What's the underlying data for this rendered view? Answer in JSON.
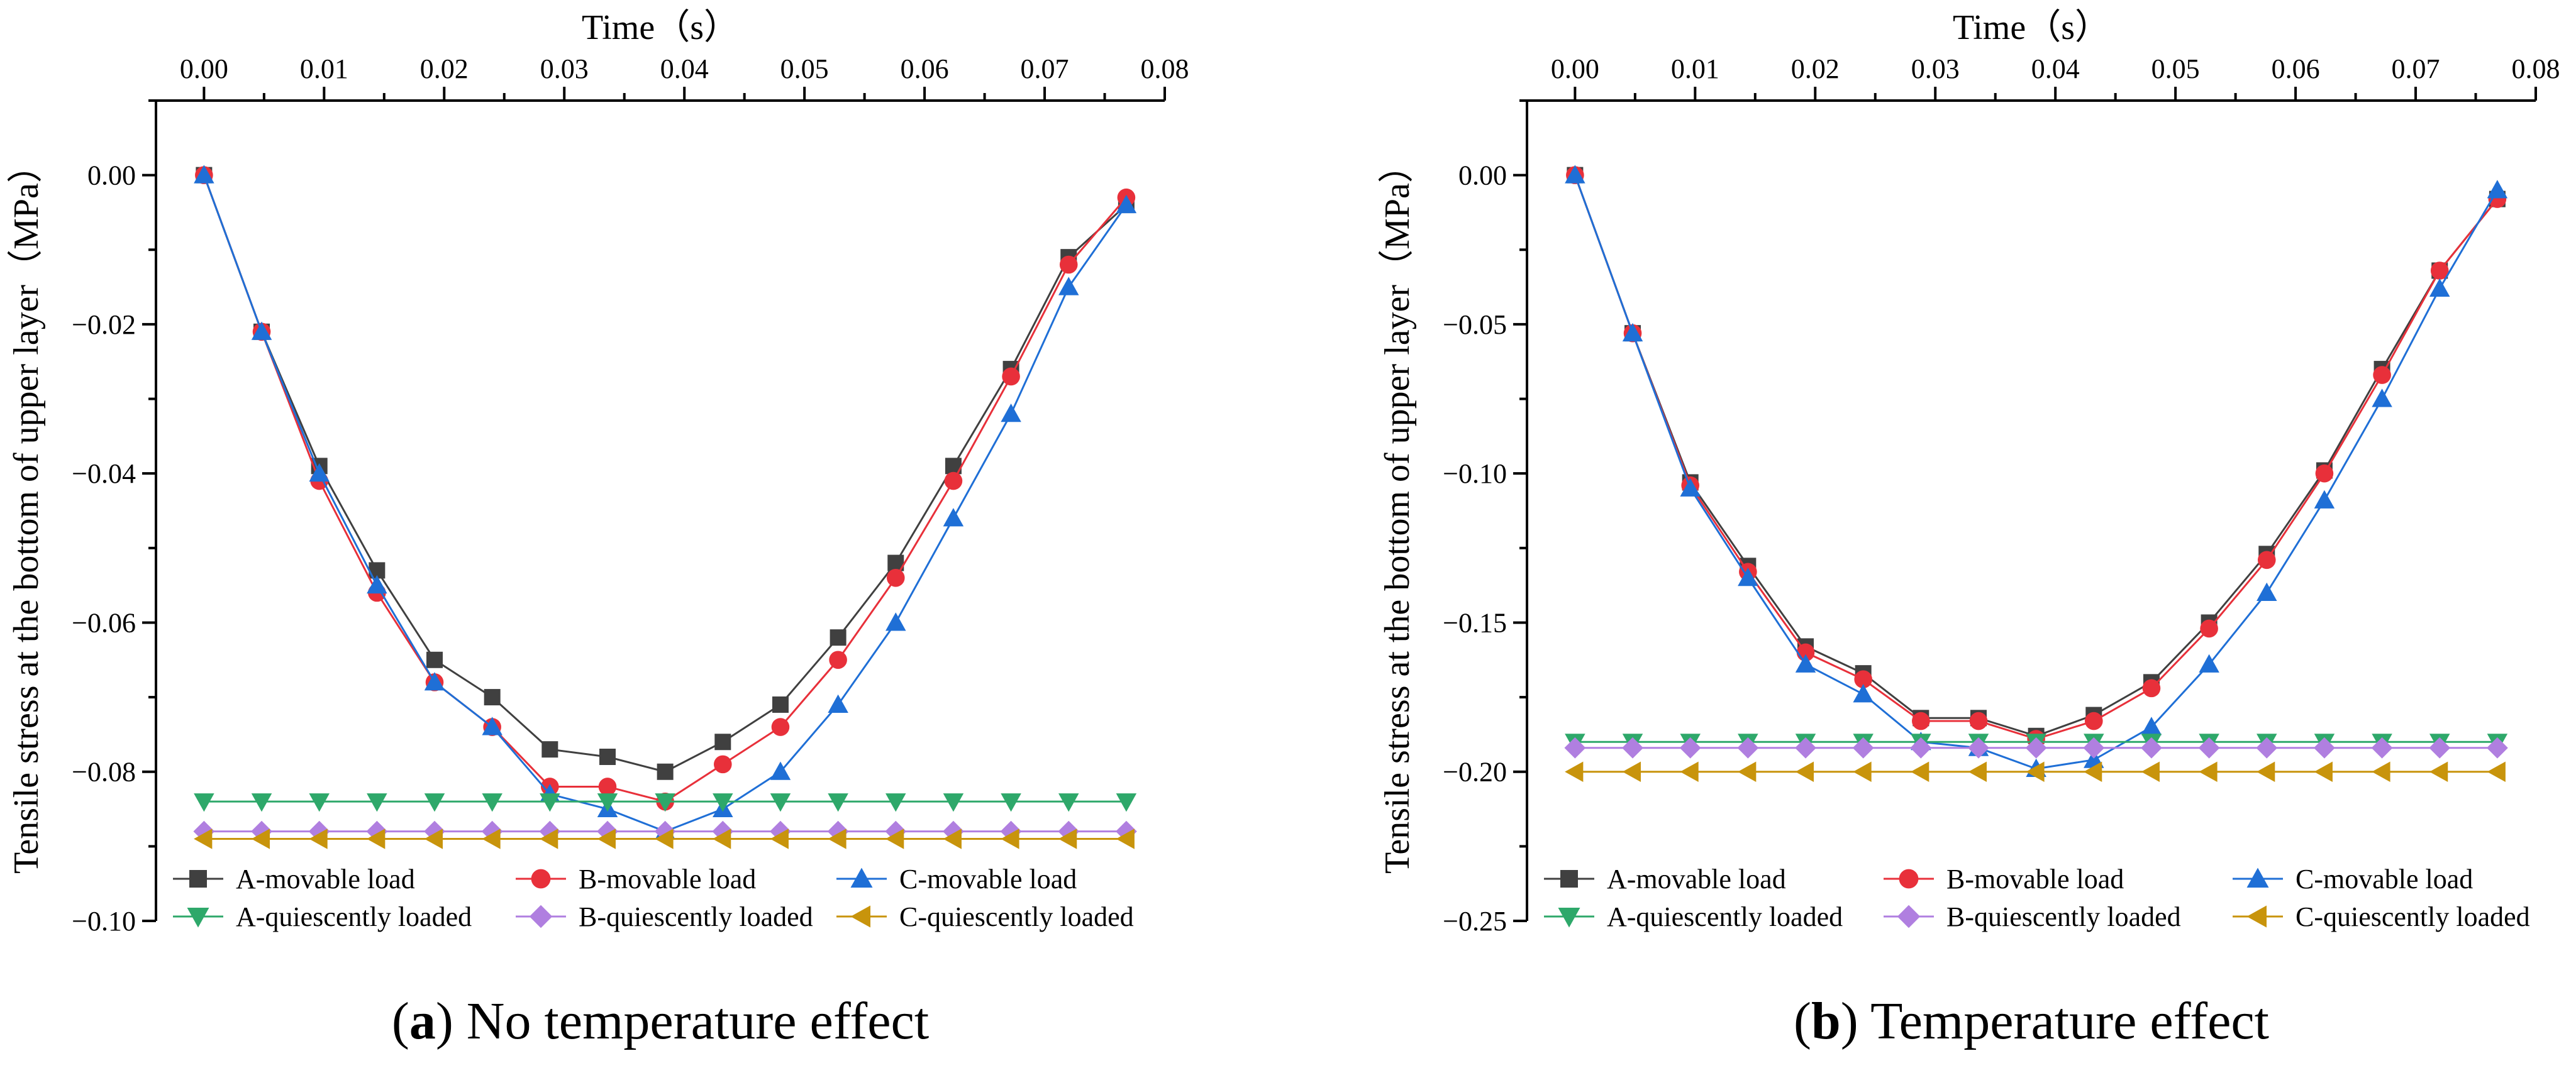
{
  "chart_data": [
    {
      "type": "line",
      "caption": {
        "letter": "a",
        "text": "No temperature effect"
      },
      "xlabel": "Time（s）",
      "ylabel": "Tensile stress at the bottom of upper layer（MPa）",
      "xlim": [
        -0.004,
        0.08
      ],
      "ylim": [
        -0.1,
        0.01
      ],
      "xticks": [
        "0.00",
        "0.01",
        "0.02",
        "0.03",
        "0.04",
        "0.05",
        "0.06",
        "0.07",
        "0.08"
      ],
      "yticks": [
        "0.00",
        "−0.02",
        "−0.04",
        "−0.06",
        "−0.08",
        "−0.10"
      ],
      "x": [
        0.0,
        0.0048,
        0.0096,
        0.0144,
        0.0192,
        0.024,
        0.0288,
        0.0336,
        0.0384,
        0.0432,
        0.048,
        0.0528,
        0.0576,
        0.0624,
        0.0672,
        0.072,
        0.0768
      ],
      "series": [
        {
          "name": "A-movable load",
          "color": "#404040",
          "marker": "square",
          "values": [
            0.0,
            -0.021,
            -0.039,
            -0.053,
            -0.065,
            -0.07,
            -0.077,
            -0.078,
            -0.08,
            -0.076,
            -0.071,
            -0.062,
            -0.052,
            -0.039,
            -0.026,
            -0.011,
            -0.004
          ]
        },
        {
          "name": "B-movable load",
          "color": "#e8303a",
          "marker": "circle",
          "values": [
            0.0,
            -0.021,
            -0.041,
            -0.056,
            -0.068,
            -0.074,
            -0.082,
            -0.082,
            -0.084,
            -0.079,
            -0.074,
            -0.065,
            -0.054,
            -0.041,
            -0.027,
            -0.012,
            -0.003
          ]
        },
        {
          "name": "C-movable load",
          "color": "#1f6fd6",
          "marker": "triangle-up",
          "values": [
            0.0,
            -0.021,
            -0.04,
            -0.055,
            -0.068,
            -0.074,
            -0.083,
            -0.085,
            -0.088,
            -0.085,
            -0.08,
            -0.071,
            -0.06,
            -0.046,
            -0.032,
            -0.015,
            -0.004
          ]
        },
        {
          "name": "A-quiescently loaded",
          "color": "#2ea86a",
          "marker": "triangle-down",
          "values": [
            -0.084,
            -0.084,
            -0.084,
            -0.084,
            -0.084,
            -0.084,
            -0.084,
            -0.084,
            -0.084,
            -0.084,
            -0.084,
            -0.084,
            -0.084,
            -0.084,
            -0.084,
            -0.084,
            -0.084
          ]
        },
        {
          "name": "B-quiescently loaded",
          "color": "#b07fe0",
          "marker": "diamond",
          "values": [
            -0.088,
            -0.088,
            -0.088,
            -0.088,
            -0.088,
            -0.088,
            -0.088,
            -0.088,
            -0.088,
            -0.088,
            -0.088,
            -0.088,
            -0.088,
            -0.088,
            -0.088,
            -0.088,
            -0.088
          ]
        },
        {
          "name": "C-quiescently loaded",
          "color": "#c8940c",
          "marker": "triangle-left",
          "values": [
            -0.089,
            -0.089,
            -0.089,
            -0.089,
            -0.089,
            -0.089,
            -0.089,
            -0.089,
            -0.089,
            -0.089,
            -0.089,
            -0.089,
            -0.089,
            -0.089,
            -0.089,
            -0.089,
            -0.089
          ]
        }
      ]
    },
    {
      "type": "line",
      "caption": {
        "letter": "b",
        "text": "Temperature effect"
      },
      "xlabel": "Time（s）",
      "ylabel": "Tensile stress at the bottom of upper layer（MPa）",
      "xlim": [
        -0.004,
        0.08
      ],
      "ylim": [
        -0.25,
        0.025
      ],
      "xticks": [
        "0.00",
        "0.01",
        "0.02",
        "0.03",
        "0.04",
        "0.05",
        "0.06",
        "0.07",
        "0.08"
      ],
      "yticks": [
        "0.00",
        "−0.05",
        "−0.10",
        "−0.15",
        "−0.20",
        "−0.25"
      ],
      "x": [
        0.0,
        0.0048,
        0.0096,
        0.0144,
        0.0192,
        0.024,
        0.0288,
        0.0336,
        0.0384,
        0.0432,
        0.048,
        0.0528,
        0.0576,
        0.0624,
        0.0672,
        0.072,
        0.0768
      ],
      "series": [
        {
          "name": "A-movable load",
          "color": "#404040",
          "marker": "square",
          "values": [
            0.0,
            -0.053,
            -0.103,
            -0.131,
            -0.158,
            -0.167,
            -0.182,
            -0.182,
            -0.188,
            -0.181,
            -0.17,
            -0.15,
            -0.127,
            -0.099,
            -0.065,
            -0.032,
            -0.008
          ]
        },
        {
          "name": "B-movable load",
          "color": "#e8303a",
          "marker": "circle",
          "values": [
            0.0,
            -0.053,
            -0.104,
            -0.133,
            -0.16,
            -0.169,
            -0.183,
            -0.183,
            -0.189,
            -0.183,
            -0.172,
            -0.152,
            -0.129,
            -0.1,
            -0.067,
            -0.032,
            -0.008
          ]
        },
        {
          "name": "C-movable load",
          "color": "#1f6fd6",
          "marker": "triangle-up",
          "values": [
            0.0,
            -0.053,
            -0.105,
            -0.135,
            -0.164,
            -0.174,
            -0.19,
            -0.192,
            -0.199,
            -0.196,
            -0.185,
            -0.164,
            -0.14,
            -0.109,
            -0.075,
            -0.038,
            -0.005
          ]
        },
        {
          "name": "A-quiescently loaded",
          "color": "#2ea86a",
          "marker": "triangle-down",
          "values": [
            -0.19,
            -0.19,
            -0.19,
            -0.19,
            -0.19,
            -0.19,
            -0.19,
            -0.19,
            -0.19,
            -0.19,
            -0.19,
            -0.19,
            -0.19,
            -0.19,
            -0.19,
            -0.19,
            -0.19
          ]
        },
        {
          "name": "B-quiescently loaded",
          "color": "#b07fe0",
          "marker": "diamond",
          "values": [
            -0.192,
            -0.192,
            -0.192,
            -0.192,
            -0.192,
            -0.192,
            -0.192,
            -0.192,
            -0.192,
            -0.192,
            -0.192,
            -0.192,
            -0.192,
            -0.192,
            -0.192,
            -0.192,
            -0.192
          ]
        },
        {
          "name": "C-quiescently loaded",
          "color": "#c8940c",
          "marker": "triangle-left",
          "values": [
            -0.2,
            -0.2,
            -0.2,
            -0.2,
            -0.2,
            -0.2,
            -0.2,
            -0.2,
            -0.2,
            -0.2,
            -0.2,
            -0.2,
            -0.2,
            -0.2,
            -0.2,
            -0.2,
            -0.2
          ]
        }
      ]
    }
  ]
}
